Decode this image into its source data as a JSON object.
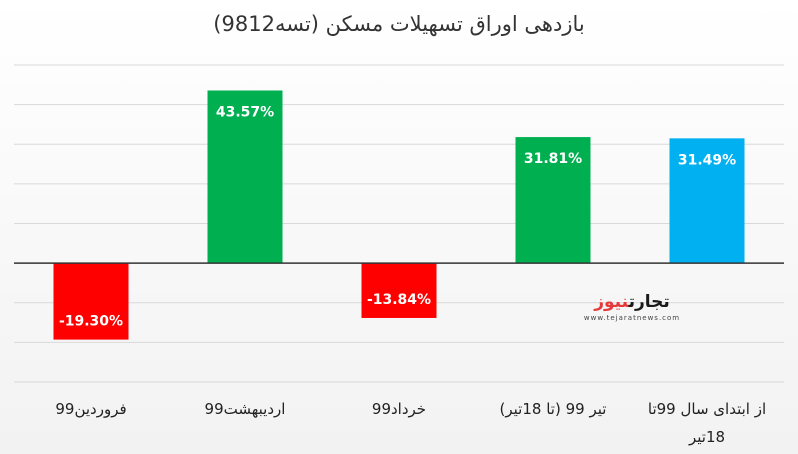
{
  "chart_data": {
    "type": "bar",
    "title": "بازدهی اوراق تسهیلات مسکن (تسه9812)",
    "categories": [
      "فروردین99",
      "اردیبهشت99",
      "خرداد99",
      "تیر 99 (تا 18تیر)",
      "از ابتدای سال 99تا 18تیر"
    ],
    "category_lines": [
      [
        "فروردین99"
      ],
      [
        "اردیبهشت99"
      ],
      [
        "خرداد99"
      ],
      [
        "تیر 99 (تا 18تیر)"
      ],
      [
        "از ابتدای سال 99تا",
        "18تیر"
      ]
    ],
    "values": [
      -19.3,
      43.57,
      -13.84,
      31.81,
      31.49
    ],
    "value_labels": [
      "-19.30%",
      "43.57%",
      "-13.84%",
      "31.81%",
      "31.49%"
    ],
    "colors": [
      "#ff0000",
      "#00b050",
      "#ff0000",
      "#00b050",
      "#00b0f0"
    ],
    "ylim": [
      -30,
      50
    ],
    "grid": true,
    "legend": "none"
  },
  "watermark": {
    "brand_part1": "تجارت",
    "brand_part2": "نیوز",
    "url": "www.tejaratnews.com"
  }
}
